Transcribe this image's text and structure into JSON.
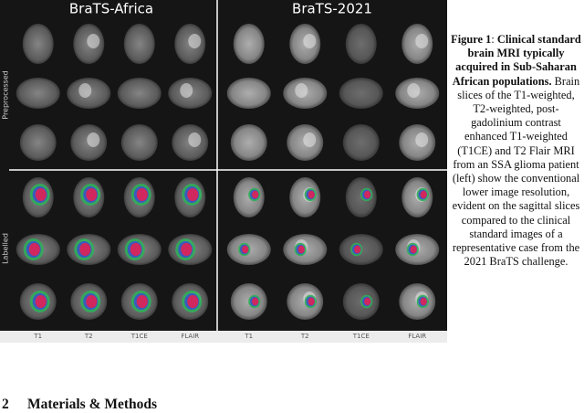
{
  "figure": {
    "panels": [
      {
        "title": "BraTS-Africa"
      },
      {
        "title": "BraTS-2021"
      }
    ],
    "row_labels": [
      "Preprocessed",
      "Labelled"
    ],
    "column_labels": [
      "T1",
      "T2",
      "T1CE",
      "FLAIR"
    ]
  },
  "caption": {
    "label": "Figure 1",
    "separator": ":",
    "title": "Clinical standard brain MRI typically acquired in Sub-Saharan African populations.",
    "text": "Brain slices of the T1-weighted, T2-weighted, post-gadolinium contrast enhanced T1-weighted (T1CE) and T2 Flair MRI from an SSA glioma patient (left) show the conventional lower image resolution, evident on the sagittal slices compared to the clinical standard images of a representative case from the 2021 BraTS challenge."
  },
  "section": {
    "number": "2",
    "title": "Materials & Methods"
  }
}
